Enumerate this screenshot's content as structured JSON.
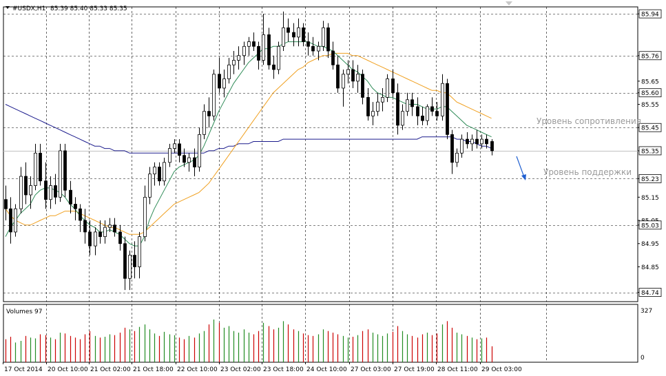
{
  "header": {
    "symbol": "#USDX,H1",
    "ohlc": "85.39 85.40 85.33 85.35"
  },
  "volume_header": {
    "label": "Volumes 97"
  },
  "annotations": {
    "resistance": "Уровень сопротивления",
    "support": "Уровень поддержки"
  },
  "colors": {
    "bull": "#000000",
    "bear": "#000000",
    "vol_up": "#228b22",
    "vol_down": "#cc0000",
    "ma_fast": "#2e8b57",
    "ma_mid": "#f0a020",
    "ma_slow": "#1a1a8c",
    "arrow": "#1f5fd0",
    "current_line": "#c0c0c0"
  },
  "chart_data": {
    "type": "candlestick",
    "ylim": [
      84.7,
      85.97
    ],
    "price_ticks": [
      "85.94",
      "85.76",
      "85.65",
      "85.60",
      "85.55",
      "85.45",
      "85.35",
      "85.23",
      "85.15",
      "85.05",
      "85.03",
      "84.95",
      "84.85",
      "84.74"
    ],
    "boxed_levels": [
      "85.94",
      "85.76",
      "85.60",
      "85.45",
      "85.35",
      "85.23",
      "85.03",
      "84.74"
    ],
    "dashed_levels": [
      85.94,
      85.76,
      85.6,
      85.45,
      85.23,
      85.03,
      84.74
    ],
    "current_price": 85.35,
    "volume_ticks": [
      "327",
      "0"
    ],
    "volume_max": 327,
    "x_labels": [
      "17 Oct 2014",
      "20 Oct 10:00",
      "21 Oct 02:00",
      "21 Oct 18:00",
      "22 Oct 10:00",
      "23 Oct 02:00",
      "23 Oct 18:00",
      "24 Oct 10:00",
      "27 Oct 03:00",
      "27 Oct 19:00",
      "28 Oct 11:00",
      "29 Oct 03:00"
    ],
    "candles": [
      [
        85.14,
        85.2,
        85.05,
        85.1
      ],
      [
        85.1,
        85.15,
        84.95,
        85.0
      ],
      [
        85.0,
        85.12,
        84.98,
        85.1
      ],
      [
        85.1,
        85.28,
        85.08,
        85.24
      ],
      [
        85.24,
        85.3,
        85.12,
        85.16
      ],
      [
        85.16,
        85.24,
        85.1,
        85.2
      ],
      [
        85.2,
        85.38,
        85.18,
        85.34
      ],
      [
        85.34,
        85.38,
        85.2,
        85.22
      ],
      [
        85.22,
        85.3,
        85.1,
        85.14
      ],
      [
        85.14,
        85.24,
        85.1,
        85.2
      ],
      [
        85.2,
        85.25,
        85.12,
        85.15
      ],
      [
        85.15,
        85.38,
        85.13,
        85.35
      ],
      [
        85.35,
        85.38,
        85.15,
        85.18
      ],
      [
        85.18,
        85.22,
        85.08,
        85.12
      ],
      [
        85.12,
        85.15,
        85.05,
        85.1
      ],
      [
        85.1,
        85.12,
        85.0,
        85.05
      ],
      [
        85.05,
        85.1,
        84.95,
        85.0
      ],
      [
        85.0,
        85.05,
        84.9,
        84.94
      ],
      [
        84.94,
        85.02,
        84.9,
        85.0
      ],
      [
        85.0,
        85.05,
        84.95,
        84.98
      ],
      [
        84.98,
        85.05,
        84.95,
        85.02
      ],
      [
        85.02,
        85.06,
        85.0,
        85.03
      ],
      [
        85.03,
        85.06,
        84.98,
        85.0
      ],
      [
        85.0,
        85.03,
        84.92,
        84.95
      ],
      [
        84.95,
        84.98,
        84.75,
        84.8
      ],
      [
        84.8,
        84.92,
        84.75,
        84.9
      ],
      [
        84.9,
        84.96,
        84.8,
        84.85
      ],
      [
        84.85,
        85.0,
        84.8,
        84.98
      ],
      [
        84.98,
        85.2,
        84.96,
        85.15
      ],
      [
        85.15,
        85.28,
        85.12,
        85.25
      ],
      [
        85.25,
        85.3,
        85.2,
        85.28
      ],
      [
        85.28,
        85.3,
        85.2,
        85.22
      ],
      [
        85.22,
        85.32,
        85.2,
        85.3
      ],
      [
        85.3,
        85.38,
        85.28,
        85.36
      ],
      [
        85.36,
        85.4,
        85.34,
        85.38
      ],
      [
        85.38,
        85.4,
        85.3,
        85.33
      ],
      [
        85.33,
        85.36,
        85.28,
        85.3
      ],
      [
        85.3,
        85.34,
        85.26,
        85.32
      ],
      [
        85.32,
        85.36,
        85.24,
        85.28
      ],
      [
        85.28,
        85.45,
        85.26,
        85.42
      ],
      [
        85.42,
        85.55,
        85.4,
        85.52
      ],
      [
        85.52,
        85.58,
        85.45,
        85.5
      ],
      [
        85.5,
        85.7,
        85.48,
        85.68
      ],
      [
        85.68,
        85.75,
        85.6,
        85.62
      ],
      [
        85.62,
        85.7,
        85.58,
        85.66
      ],
      [
        85.66,
        85.75,
        85.64,
        85.72
      ],
      [
        85.72,
        85.78,
        85.68,
        85.74
      ],
      [
        85.74,
        85.8,
        85.7,
        85.76
      ],
      [
        85.76,
        85.82,
        85.72,
        85.8
      ],
      [
        85.8,
        85.84,
        85.76,
        85.82
      ],
      [
        85.82,
        85.86,
        85.78,
        85.8
      ],
      [
        85.8,
        85.82,
        85.7,
        85.74
      ],
      [
        85.74,
        85.94,
        85.72,
        85.85
      ],
      [
        85.85,
        85.88,
        85.7,
        85.72
      ],
      [
        85.72,
        85.76,
        85.66,
        85.7
      ],
      [
        85.7,
        85.82,
        85.68,
        85.8
      ],
      [
        85.8,
        85.95,
        85.78,
        85.88
      ],
      [
        85.88,
        85.92,
        85.82,
        85.86
      ],
      [
        85.86,
        85.9,
        85.8,
        85.84
      ],
      [
        85.84,
        85.92,
        85.8,
        85.88
      ],
      [
        85.88,
        85.9,
        85.8,
        85.82
      ],
      [
        85.82,
        85.86,
        85.76,
        85.8
      ],
      [
        85.8,
        85.84,
        85.76,
        85.78
      ],
      [
        85.78,
        85.82,
        85.74,
        85.8
      ],
      [
        85.8,
        85.91,
        85.78,
        85.88
      ],
      [
        85.88,
        85.9,
        85.75,
        85.78
      ],
      [
        85.78,
        85.82,
        85.7,
        85.72
      ],
      [
        85.72,
        85.76,
        85.6,
        85.62
      ],
      [
        85.62,
        85.7,
        85.54,
        85.68
      ],
      [
        85.68,
        85.74,
        85.64,
        85.7
      ],
      [
        85.7,
        85.74,
        85.62,
        85.65
      ],
      [
        85.65,
        85.72,
        85.6,
        85.68
      ],
      [
        85.68,
        85.7,
        85.55,
        85.58
      ],
      [
        85.58,
        85.62,
        85.48,
        85.5
      ],
      [
        85.5,
        85.56,
        85.46,
        85.52
      ],
      [
        85.52,
        85.6,
        85.5,
        85.56
      ],
      [
        85.56,
        85.62,
        85.52,
        85.58
      ],
      [
        85.58,
        85.68,
        85.56,
        85.66
      ],
      [
        85.66,
        85.7,
        85.58,
        85.6
      ],
      [
        85.6,
        85.64,
        85.42,
        85.46
      ],
      [
        85.46,
        85.55,
        85.44,
        85.52
      ],
      [
        85.52,
        85.6,
        85.5,
        85.57
      ],
      [
        85.57,
        85.6,
        85.5,
        85.54
      ],
      [
        85.54,
        85.58,
        85.46,
        85.5
      ],
      [
        85.5,
        85.54,
        85.46,
        85.48
      ],
      [
        85.48,
        85.55,
        85.46,
        85.54
      ],
      [
        85.54,
        85.58,
        85.5,
        85.52
      ],
      [
        85.52,
        85.56,
        85.48,
        85.5
      ],
      [
        85.5,
        85.68,
        85.48,
        85.64
      ],
      [
        85.64,
        85.66,
        85.4,
        85.42
      ],
      [
        85.42,
        85.44,
        85.25,
        85.3
      ],
      [
        85.3,
        85.36,
        85.28,
        85.34
      ],
      [
        85.34,
        85.42,
        85.32,
        85.4
      ],
      [
        85.4,
        85.43,
        85.36,
        85.38
      ],
      [
        85.38,
        85.42,
        85.35,
        85.4
      ],
      [
        85.4,
        85.44,
        85.36,
        85.38
      ],
      [
        85.38,
        85.42,
        85.36,
        85.4
      ],
      [
        85.4,
        85.42,
        85.36,
        85.38
      ],
      [
        85.39,
        85.4,
        85.33,
        85.35
      ]
    ],
    "volumes": [
      140,
      155,
      120,
      130,
      160,
      150,
      145,
      170,
      165,
      150,
      140,
      180,
      175,
      160,
      150,
      140,
      170,
      190,
      160,
      150,
      155,
      170,
      165,
      180,
      210,
      200,
      190,
      215,
      230,
      200,
      175,
      160,
      185,
      170,
      165,
      150,
      140,
      160,
      150,
      175,
      190,
      230,
      260,
      240,
      210,
      220,
      190,
      180,
      200,
      180,
      170,
      190,
      240,
      220,
      200,
      210,
      250,
      230,
      200,
      190,
      175,
      165,
      160,
      170,
      200,
      190,
      180,
      170,
      160,
      150,
      155,
      165,
      190,
      200,
      180,
      170,
      160,
      175,
      185,
      220,
      190,
      170,
      160,
      150,
      170,
      180,
      165,
      175,
      230,
      250,
      210,
      180,
      170,
      160,
      150,
      140,
      145,
      150,
      97
    ],
    "ma_fast": [
      84.98,
      85.02,
      85.05,
      85.08,
      85.1,
      85.12,
      85.16,
      85.18,
      85.19,
      85.19,
      85.18,
      85.17,
      85.15,
      85.12,
      85.1,
      85.07,
      85.05,
      85.03,
      85.02,
      85.0,
      85.0,
      85.01,
      85.0,
      84.99,
      84.97,
      84.95,
      84.94,
      84.94,
      84.98,
      85.05,
      85.1,
      85.14,
      85.18,
      85.22,
      85.26,
      85.28,
      85.29,
      85.3,
      85.31,
      85.33,
      85.37,
      85.42,
      85.47,
      85.52,
      85.56,
      85.6,
      85.64,
      85.67,
      85.7,
      85.73,
      85.75,
      85.77,
      85.79,
      85.79,
      85.8,
      85.8,
      85.81,
      85.82,
      85.82,
      85.82,
      85.82,
      85.82,
      85.81,
      85.8,
      85.8,
      85.79,
      85.78,
      85.76,
      85.74,
      85.72,
      85.7,
      85.69,
      85.67,
      85.65,
      85.62,
      85.6,
      85.59,
      85.58,
      85.58,
      85.57,
      85.56,
      85.55,
      85.55,
      85.55,
      85.54,
      85.53,
      85.53,
      85.53,
      85.54,
      85.54,
      85.52,
      85.5,
      85.48,
      85.46,
      85.45,
      85.44,
      85.43,
      85.42,
      85.41
    ],
    "ma_mid": [
      85.1,
      85.07,
      85.05,
      85.04,
      85.03,
      85.03,
      85.04,
      85.05,
      85.06,
      85.07,
      85.07,
      85.08,
      85.09,
      85.09,
      85.09,
      85.08,
      85.07,
      85.06,
      85.05,
      85.04,
      85.03,
      85.02,
      85.02,
      85.01,
      85.0,
      84.99,
      84.99,
      84.99,
      85.0,
      85.02,
      85.04,
      85.06,
      85.08,
      85.1,
      85.12,
      85.13,
      85.14,
      85.15,
      85.16,
      85.17,
      85.19,
      85.21,
      85.24,
      85.27,
      85.3,
      85.33,
      85.36,
      85.39,
      85.42,
      85.45,
      85.48,
      85.51,
      85.54,
      85.57,
      85.6,
      85.62,
      85.64,
      85.66,
      85.68,
      85.7,
      85.71,
      85.73,
      85.74,
      85.75,
      85.76,
      85.76,
      85.77,
      85.77,
      85.77,
      85.77,
      85.76,
      85.76,
      85.75,
      85.74,
      85.73,
      85.72,
      85.71,
      85.7,
      85.69,
      85.68,
      85.67,
      85.66,
      85.65,
      85.64,
      85.63,
      85.62,
      85.61,
      85.61,
      85.6,
      85.6,
      85.58,
      85.56,
      85.55,
      85.54,
      85.53,
      85.52,
      85.51,
      85.5,
      85.49
    ],
    "ma_slow": [
      85.55,
      85.54,
      85.53,
      85.52,
      85.51,
      85.5,
      85.49,
      85.48,
      85.47,
      85.46,
      85.45,
      85.44,
      85.43,
      85.42,
      85.41,
      85.4,
      85.39,
      85.38,
      85.37,
      85.37,
      85.36,
      85.36,
      85.35,
      85.35,
      85.35,
      85.34,
      85.34,
      85.34,
      85.34,
      85.34,
      85.34,
      85.34,
      85.34,
      85.34,
      85.34,
      85.34,
      85.34,
      85.34,
      85.34,
      85.34,
      85.34,
      85.35,
      85.35,
      85.36,
      85.36,
      85.37,
      85.37,
      85.38,
      85.38,
      85.38,
      85.39,
      85.39,
      85.39,
      85.39,
      85.39,
      85.39,
      85.4,
      85.4,
      85.4,
      85.4,
      85.4,
      85.4,
      85.4,
      85.4,
      85.4,
      85.4,
      85.4,
      85.4,
      85.4,
      85.4,
      85.4,
      85.4,
      85.4,
      85.4,
      85.4,
      85.4,
      85.4,
      85.4,
      85.4,
      85.4,
      85.4,
      85.4,
      85.4,
      85.4,
      85.41,
      85.41,
      85.41,
      85.41,
      85.41,
      85.41,
      85.41,
      85.4,
      85.4,
      85.39,
      85.39,
      85.38,
      85.37,
      85.37,
      85.36
    ]
  }
}
